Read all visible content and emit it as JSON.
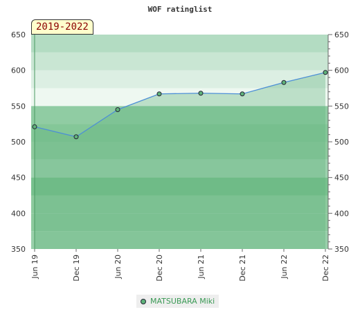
{
  "chart_data": {
    "type": "line",
    "title": "WOF ratinglist",
    "period_label": "2019-2022",
    "categories": [
      "Jun 19",
      "Dec 19",
      "Jun 20",
      "Dec 20",
      "Jun 21",
      "Dec 21",
      "Jun 22",
      "Dec 22"
    ],
    "series": [
      {
        "name": "MATSUBARA Miki",
        "values": [
          521,
          507,
          545,
          567,
          568,
          567,
          583,
          597
        ]
      }
    ],
    "ylim": [
      350,
      650
    ],
    "yticks": [
      350,
      400,
      450,
      500,
      550,
      600,
      650
    ],
    "grid": true,
    "legend_position": "bottom",
    "colors": {
      "line": "#4d8fd6",
      "marker": "#5fb37a",
      "legend_text": "#3a9a55"
    }
  }
}
